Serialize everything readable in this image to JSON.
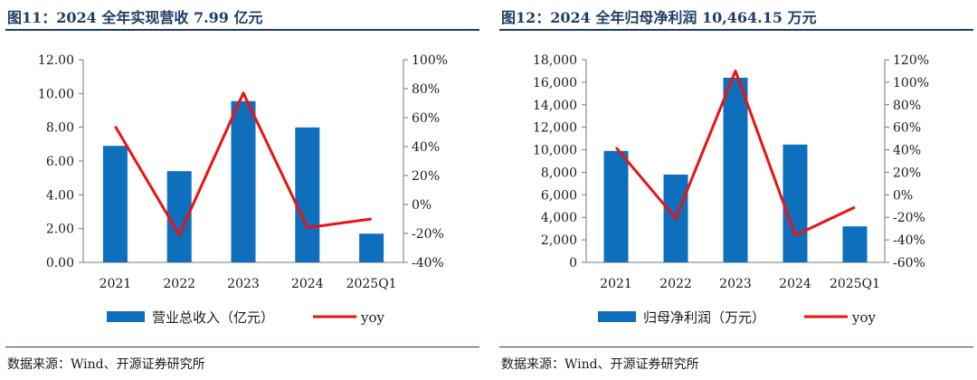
{
  "charts": [
    {
      "id": "left",
      "figure_title": "图11：2024 全年实现营收 7.99 亿元",
      "source": "数据来源：Wind、开源证券研究所",
      "bar_color": "#0e6fbd",
      "line_color": "#ee1111"
    },
    {
      "id": "right",
      "figure_title": "图12：2024 全年归母净利润 10,464.15 万元",
      "source": "数据来源：Wind、开源证券研究所",
      "bar_color": "#0e6fbd",
      "line_color": "#ee1111"
    }
  ],
  "chart_data": [
    {
      "type": "bar",
      "title": "图11：2024 全年实现营收 7.99 亿元",
      "categories": [
        "2021",
        "2022",
        "2023",
        "2024",
        "2025Q1"
      ],
      "series": [
        {
          "name": "营业总收入（亿元）",
          "kind": "bar",
          "axis": "left",
          "values": [
            6.9,
            5.4,
            9.55,
            7.99,
            1.7
          ]
        },
        {
          "name": "yoy",
          "kind": "line",
          "axis": "right",
          "values": [
            0.54,
            -0.21,
            0.77,
            -0.16,
            -0.1
          ]
        }
      ],
      "y_left": {
        "ylim": [
          0,
          12
        ],
        "ticks": [
          0,
          2,
          4,
          6,
          8,
          10,
          12
        ],
        "tick_labels": [
          "0.00",
          "2.00",
          "4.00",
          "6.00",
          "8.00",
          "10.00",
          "12.00"
        ]
      },
      "y_right": {
        "ylim": [
          -0.4,
          1.0
        ],
        "ticks": [
          -0.4,
          -0.2,
          0,
          0.2,
          0.4,
          0.6,
          0.8,
          1.0
        ],
        "tick_labels": [
          "-40%",
          "-20%",
          "0%",
          "20%",
          "40%",
          "60%",
          "80%",
          "100%"
        ]
      },
      "grid": false,
      "legend": "bottom"
    },
    {
      "type": "bar",
      "title": "图12：2024 全年归母净利润 10,464.15 万元",
      "categories": [
        "2021",
        "2022",
        "2023",
        "2024",
        "2025Q1"
      ],
      "series": [
        {
          "name": "归母净利润（万元）",
          "kind": "bar",
          "axis": "left",
          "values": [
            9900,
            7800,
            16400,
            10464.15,
            3200
          ]
        },
        {
          "name": "yoy",
          "kind": "line",
          "axis": "right",
          "values": [
            0.42,
            -0.21,
            1.1,
            -0.36,
            -0.11
          ]
        }
      ],
      "y_left": {
        "ylim": [
          0,
          18000
        ],
        "ticks": [
          0,
          2000,
          4000,
          6000,
          8000,
          10000,
          12000,
          14000,
          16000,
          18000
        ],
        "tick_labels": [
          "0",
          "2,000",
          "4,000",
          "6,000",
          "8,000",
          "10,000",
          "12,000",
          "14,000",
          "16,000",
          "18,000"
        ]
      },
      "y_right": {
        "ylim": [
          -0.6,
          1.2
        ],
        "ticks": [
          -0.6,
          -0.4,
          -0.2,
          0,
          0.2,
          0.4,
          0.6,
          0.8,
          1.0,
          1.2
        ],
        "tick_labels": [
          "-60%",
          "-40%",
          "-20%",
          "0%",
          "20%",
          "40%",
          "60%",
          "80%",
          "100%",
          "120%"
        ]
      },
      "grid": false,
      "legend": "bottom"
    }
  ]
}
